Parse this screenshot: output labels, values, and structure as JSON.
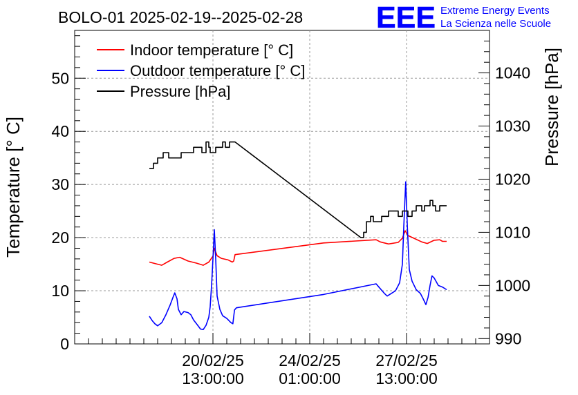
{
  "chart_data": {
    "type": "line",
    "title": "BOLO-01 2025-02-19--2025-02-28",
    "logo": {
      "text": "EEE",
      "line1": "Extreme Energy Events",
      "line2": "La Scienza nelle Scuole",
      "color": "#0000ff"
    },
    "x_ticks": [
      {
        "t": 5.0,
        "line1": "20/02/25",
        "line2": "13:00:00"
      },
      {
        "t": 8.5,
        "line1": "24/02/25",
        "line2": "01:00:00"
      },
      {
        "t": 12.0,
        "line1": "27/02/25",
        "line2": "13:00:00"
      }
    ],
    "xlim": [
      0,
      15.0
    ],
    "left_axis": {
      "label": "Temperature [° C]",
      "ylim": [
        0,
        59
      ],
      "ticks": [
        0,
        10,
        20,
        30,
        40,
        50
      ]
    },
    "right_axis": {
      "label": "Pressure [hPa]",
      "ylim": [
        989,
        1048
      ],
      "ticks": [
        990,
        1000,
        1010,
        1020,
        1030,
        1040
      ]
    },
    "grid": true,
    "legend_position": "top-left",
    "series": [
      {
        "name": "Indoor temperature [° C]",
        "axis": "left",
        "color": "#ff0000",
        "points": [
          [
            2.7,
            15.4
          ],
          [
            3.0,
            15.0
          ],
          [
            3.15,
            14.8
          ],
          [
            3.35,
            15.4
          ],
          [
            3.6,
            16.1
          ],
          [
            3.8,
            16.3
          ],
          [
            4.1,
            15.6
          ],
          [
            4.4,
            15.2
          ],
          [
            4.65,
            14.8
          ],
          [
            4.85,
            15.4
          ],
          [
            5.0,
            16.5
          ],
          [
            5.05,
            18.0
          ],
          [
            5.15,
            16.6
          ],
          [
            5.3,
            16.1
          ],
          [
            5.55,
            15.8
          ],
          [
            5.7,
            15.4
          ],
          [
            5.75,
            15.6
          ],
          [
            5.8,
            16.8
          ],
          [
            9.0,
            19.0
          ],
          [
            10.9,
            19.6
          ],
          [
            11.05,
            19.2
          ],
          [
            11.35,
            18.8
          ],
          [
            11.7,
            19.1
          ],
          [
            11.85,
            19.9
          ],
          [
            11.95,
            21.3
          ],
          [
            12.05,
            20.4
          ],
          [
            12.3,
            19.8
          ],
          [
            12.55,
            19.2
          ],
          [
            12.75,
            18.9
          ],
          [
            13.0,
            19.5
          ],
          [
            13.2,
            19.6
          ],
          [
            13.3,
            19.3
          ],
          [
            13.45,
            19.3
          ]
        ]
      },
      {
        "name": "Outdoor temperature [° C]",
        "axis": "left",
        "color": "#0000ff",
        "points": [
          [
            2.7,
            5.2
          ],
          [
            2.8,
            4.4
          ],
          [
            2.9,
            3.8
          ],
          [
            3.0,
            3.4
          ],
          [
            3.15,
            4.0
          ],
          [
            3.3,
            5.5
          ],
          [
            3.45,
            7.3
          ],
          [
            3.55,
            8.7
          ],
          [
            3.62,
            9.6
          ],
          [
            3.7,
            8.5
          ],
          [
            3.75,
            6.5
          ],
          [
            3.85,
            5.5
          ],
          [
            3.95,
            6.1
          ],
          [
            4.1,
            5.9
          ],
          [
            4.2,
            5.5
          ],
          [
            4.3,
            4.5
          ],
          [
            4.45,
            3.5
          ],
          [
            4.55,
            2.8
          ],
          [
            4.65,
            2.7
          ],
          [
            4.75,
            3.5
          ],
          [
            4.85,
            5.0
          ],
          [
            4.9,
            7.0
          ],
          [
            4.95,
            11.0
          ],
          [
            5.0,
            16.0
          ],
          [
            5.05,
            21.5
          ],
          [
            5.1,
            16.0
          ],
          [
            5.15,
            9.0
          ],
          [
            5.25,
            6.5
          ],
          [
            5.35,
            5.3
          ],
          [
            5.5,
            4.8
          ],
          [
            5.65,
            4.0
          ],
          [
            5.72,
            3.8
          ],
          [
            5.78,
            6.4
          ],
          [
            5.85,
            6.8
          ],
          [
            9.0,
            9.3
          ],
          [
            10.9,
            11.3
          ],
          [
            11.0,
            10.7
          ],
          [
            11.1,
            10.1
          ],
          [
            11.2,
            9.5
          ],
          [
            11.3,
            9.0
          ],
          [
            11.45,
            9.5
          ],
          [
            11.6,
            10.0
          ],
          [
            11.75,
            11.5
          ],
          [
            11.85,
            15.0
          ],
          [
            11.9,
            22.0
          ],
          [
            11.97,
            30.5
          ],
          [
            12.03,
            22.0
          ],
          [
            12.1,
            14.0
          ],
          [
            12.2,
            11.8
          ],
          [
            12.35,
            10.2
          ],
          [
            12.5,
            9.5
          ],
          [
            12.6,
            8.5
          ],
          [
            12.7,
            7.4
          ],
          [
            12.78,
            8.8
          ],
          [
            12.85,
            11.0
          ],
          [
            12.92,
            12.8
          ],
          [
            13.0,
            12.4
          ],
          [
            13.15,
            11.0
          ],
          [
            13.3,
            10.7
          ],
          [
            13.45,
            10.2
          ]
        ]
      },
      {
        "name": "Pressure [hPa]",
        "axis": "right",
        "color": "#000000",
        "points": [
          [
            2.7,
            1022
          ],
          [
            2.85,
            1022
          ],
          [
            2.85,
            1023
          ],
          [
            3.0,
            1023
          ],
          [
            3.0,
            1024
          ],
          [
            3.2,
            1024
          ],
          [
            3.2,
            1025
          ],
          [
            3.4,
            1025
          ],
          [
            3.4,
            1024
          ],
          [
            3.85,
            1024
          ],
          [
            3.85,
            1025
          ],
          [
            4.3,
            1025
          ],
          [
            4.3,
            1026
          ],
          [
            4.6,
            1026
          ],
          [
            4.6,
            1025
          ],
          [
            4.75,
            1025
          ],
          [
            4.75,
            1027
          ],
          [
            4.85,
            1027
          ],
          [
            4.85,
            1026
          ],
          [
            4.9,
            1026
          ],
          [
            4.9,
            1025
          ],
          [
            5.1,
            1025
          ],
          [
            5.1,
            1026
          ],
          [
            5.35,
            1026
          ],
          [
            5.35,
            1027
          ],
          [
            5.45,
            1027
          ],
          [
            5.45,
            1026
          ],
          [
            5.6,
            1026
          ],
          [
            5.6,
            1027
          ],
          [
            5.8,
            1027
          ],
          [
            10.35,
            1009
          ],
          [
            10.45,
            1009
          ],
          [
            10.45,
            1010
          ],
          [
            10.55,
            1010
          ],
          [
            10.55,
            1012
          ],
          [
            10.7,
            1012
          ],
          [
            10.7,
            1013
          ],
          [
            10.8,
            1013
          ],
          [
            10.8,
            1012
          ],
          [
            11.1,
            1012
          ],
          [
            11.1,
            1013
          ],
          [
            11.35,
            1013
          ],
          [
            11.35,
            1014
          ],
          [
            11.7,
            1014
          ],
          [
            11.7,
            1013
          ],
          [
            11.85,
            1013
          ],
          [
            11.85,
            1014
          ],
          [
            12.05,
            1014
          ],
          [
            12.05,
            1013
          ],
          [
            12.2,
            1013
          ],
          [
            12.2,
            1014
          ],
          [
            12.35,
            1014
          ],
          [
            12.35,
            1015
          ],
          [
            12.55,
            1015
          ],
          [
            12.55,
            1014
          ],
          [
            12.65,
            1014
          ],
          [
            12.65,
            1015
          ],
          [
            12.85,
            1015
          ],
          [
            12.85,
            1016
          ],
          [
            12.95,
            1016
          ],
          [
            12.95,
            1015
          ],
          [
            13.05,
            1015
          ],
          [
            13.05,
            1014
          ],
          [
            13.2,
            1014
          ],
          [
            13.2,
            1015
          ],
          [
            13.45,
            1015
          ]
        ]
      }
    ]
  }
}
